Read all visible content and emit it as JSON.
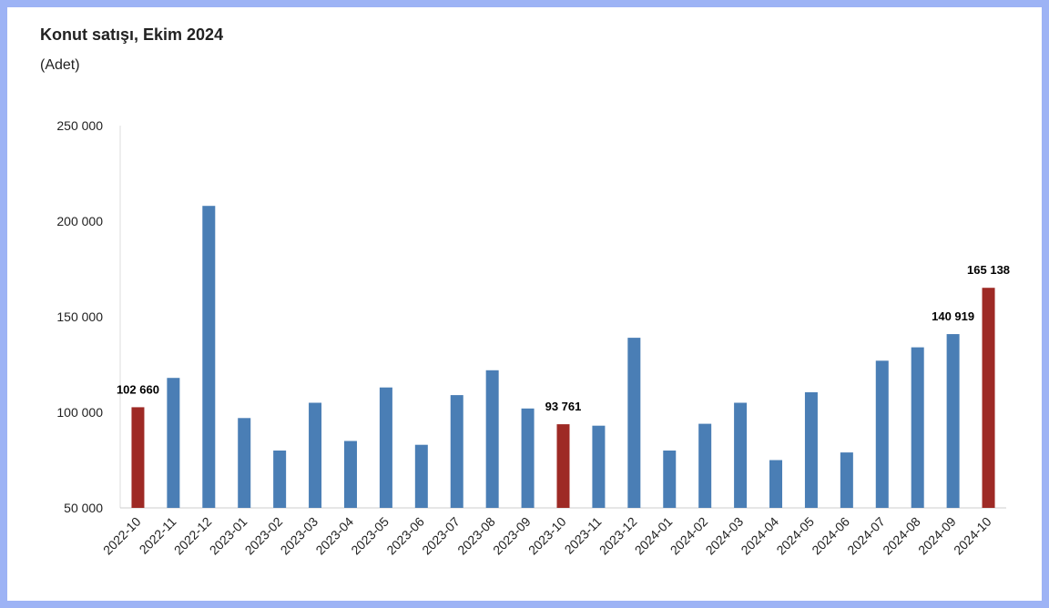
{
  "chart_data": {
    "type": "bar",
    "title": "Konut satışı, Ekim 2024",
    "subtitle": "(Adet)",
    "categories": [
      "2022-10",
      "2022-11",
      "2022-12",
      "2023-01",
      "2023-02",
      "2023-03",
      "2023-04",
      "2023-05",
      "2023-06",
      "2023-07",
      "2023-08",
      "2023-09",
      "2023-10",
      "2023-11",
      "2023-12",
      "2024-01",
      "2024-02",
      "2024-03",
      "2024-04",
      "2024-05",
      "2024-06",
      "2024-07",
      "2024-08",
      "2024-09",
      "2024-10"
    ],
    "values": [
      102660,
      118000,
      208000,
      97000,
      80000,
      105000,
      85000,
      113000,
      83000,
      109000,
      122000,
      102000,
      93761,
      93000,
      139000,
      80000,
      94000,
      105000,
      75000,
      110500,
      79000,
      127000,
      134000,
      140919,
      165138
    ],
    "value_labels": [
      "102 660",
      null,
      null,
      null,
      null,
      null,
      null,
      null,
      null,
      null,
      null,
      null,
      "93 761",
      null,
      null,
      null,
      null,
      null,
      null,
      null,
      null,
      null,
      null,
      "140 919",
      "165 138"
    ],
    "colors": [
      "#9e2a25",
      "#4a7eb5",
      "#4a7eb5",
      "#4a7eb5",
      "#4a7eb5",
      "#4a7eb5",
      "#4a7eb5",
      "#4a7eb5",
      "#4a7eb5",
      "#4a7eb5",
      "#4a7eb5",
      "#4a7eb5",
      "#9e2a25",
      "#4a7eb5",
      "#4a7eb5",
      "#4a7eb5",
      "#4a7eb5",
      "#4a7eb5",
      "#4a7eb5",
      "#4a7eb5",
      "#4a7eb5",
      "#4a7eb5",
      "#4a7eb5",
      "#4a7eb5",
      "#9e2a25"
    ],
    "ylim": [
      50000,
      250000
    ],
    "yticks": [
      {
        "value": 50000,
        "label": "50 000"
      },
      {
        "value": 100000,
        "label": "100 000"
      },
      {
        "value": 150000,
        "label": "150 000"
      },
      {
        "value": 200000,
        "label": "200 000"
      },
      {
        "value": 250000,
        "label": "250 000"
      }
    ],
    "grid": false
  }
}
